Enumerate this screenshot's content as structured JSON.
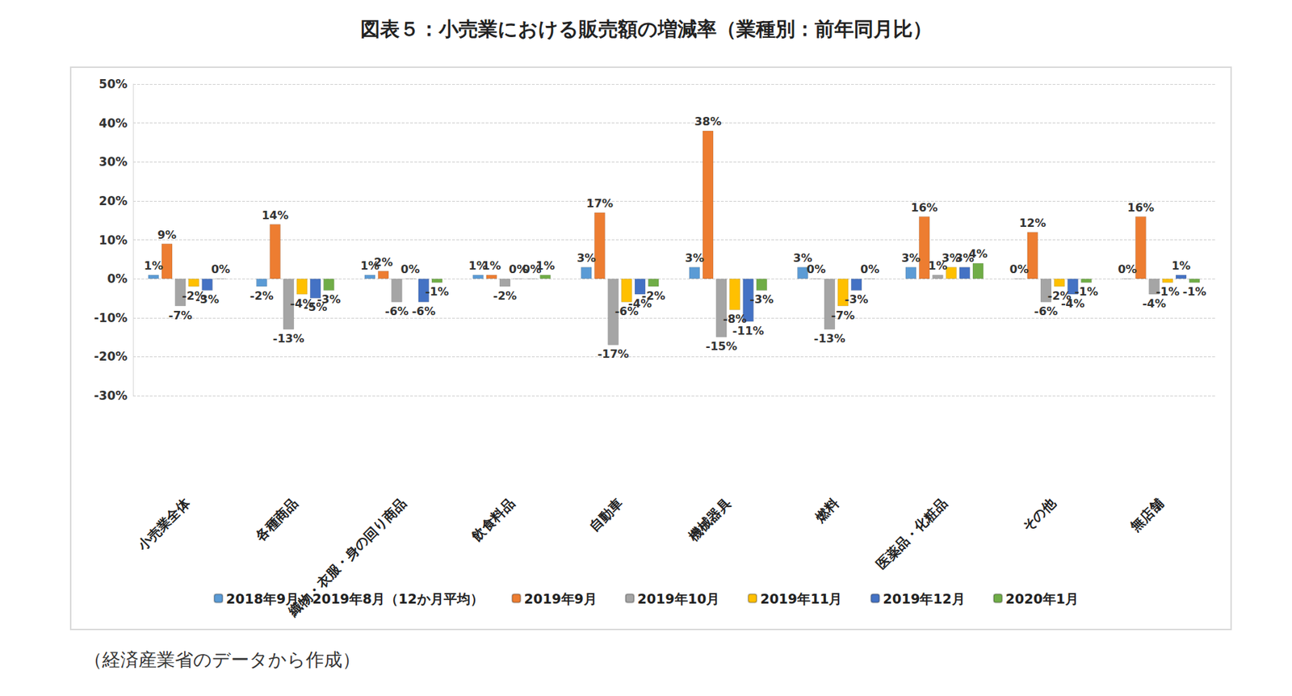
{
  "chart_data": {
    "type": "bar",
    "title": "図表５：小売業における販売額の増減率（業種別：前年同月比）",
    "source": "（経済産業省のデータから作成）",
    "categories": [
      "小売業全体",
      "各種商品",
      "織物・衣服・身の回り商品",
      "飲食料品",
      "自動車",
      "機械器具",
      "燃料",
      "医薬品・化粧品",
      "その他",
      "無店舗"
    ],
    "series": [
      {
        "name": "2018年9月～2019年8月（12か月平均）",
        "color": "#5b9bd5",
        "values": [
          1,
          -2,
          1,
          1,
          3,
          3,
          3,
          3,
          0,
          0
        ],
        "value_labels": [
          "1%",
          "-2%",
          "1%",
          "1%",
          "3%",
          "3%",
          "3%",
          "3%",
          "0%",
          "0%"
        ]
      },
      {
        "name": "2019年9月",
        "color": "#ed7d31",
        "values": [
          9,
          14,
          2,
          1,
          17,
          38,
          0,
          16,
          12,
          16
        ],
        "value_labels": [
          "9%",
          "14%",
          "2%",
          "1%",
          "17%",
          "38%",
          "0%",
          "16%",
          "12%",
          "16%"
        ]
      },
      {
        "name": "2019年10月",
        "color": "#a5a5a5",
        "values": [
          -7,
          -13,
          -6,
          -2,
          -17,
          -15,
          -13,
          1,
          -6,
          -4
        ],
        "value_labels": [
          "-7%",
          "-13%",
          "-6%",
          "-2%",
          "-17%",
          "-15%",
          "-13%",
          "1%",
          "-6%",
          "-4%"
        ]
      },
      {
        "name": "2019年11月",
        "color": "#ffc000",
        "values": [
          -2,
          -4,
          0,
          0,
          -6,
          -8,
          -7,
          3,
          -2,
          -1
        ],
        "value_labels": [
          "-2%",
          "-4%",
          "0%",
          "0%",
          "-6%",
          "-8%",
          "-7%",
          "3%",
          "-2%",
          "-1%"
        ]
      },
      {
        "name": "2019年12月",
        "color": "#4472c4",
        "values": [
          -3,
          -5,
          -6,
          0,
          -4,
          -11,
          -3,
          3,
          -4,
          1
        ],
        "value_labels": [
          "-3%",
          "-5%",
          "-6%",
          "0%",
          "-4%",
          "-11%",
          "-3%",
          "3%",
          "-4%",
          "1%"
        ]
      },
      {
        "name": "2020年1月",
        "color": "#70ad47",
        "values": [
          0,
          -3,
          -1,
          1,
          -2,
          -3,
          0,
          4,
          -1,
          -1
        ],
        "value_labels": [
          "0%",
          "-3%",
          "-1%",
          "1%",
          "-2%",
          "-3%",
          "0%",
          "4%",
          "-1%",
          "-1%"
        ]
      }
    ],
    "ylim": [
      -30,
      50
    ],
    "yticks": [
      {
        "value": -30,
        "label": "-30%"
      },
      {
        "value": -20,
        "label": "-20%"
      },
      {
        "value": -10,
        "label": "-10%"
      },
      {
        "value": 0,
        "label": "0%"
      },
      {
        "value": 10,
        "label": "10%"
      },
      {
        "value": 20,
        "label": "20%"
      },
      {
        "value": 30,
        "label": "30%"
      },
      {
        "value": 40,
        "label": "40%"
      },
      {
        "value": 50,
        "label": "50%"
      }
    ],
    "grid": true,
    "legend": "bottom",
    "data_labels": true
  }
}
